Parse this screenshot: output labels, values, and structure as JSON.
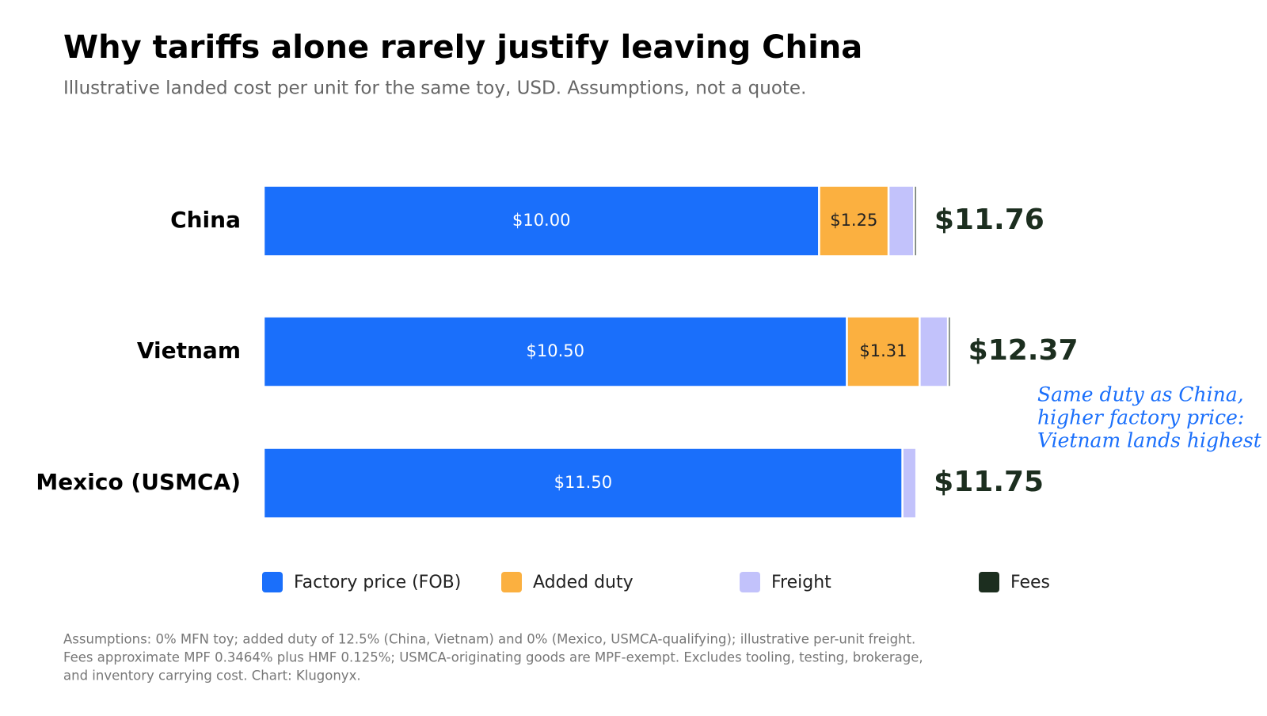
{
  "chart_data": {
    "type": "stacked-bar-horizontal",
    "title": "Why tariffs alone rarely justify leaving China",
    "subtitle": "Illustrative landed cost per unit for the same toy, USD. Assumptions, not a quote.",
    "categories": [
      "China",
      "Vietnam",
      "Mexico (USMCA)"
    ],
    "series": [
      {
        "name": "Factory price (FOB)",
        "color": "#1a6ffb",
        "values": [
          10.0,
          10.5,
          11.5
        ],
        "value_labels": [
          "$10.00",
          "$10.50",
          "$11.50"
        ]
      },
      {
        "name": "Added duty",
        "color": "#fbb040",
        "values": [
          1.25,
          1.31,
          0
        ],
        "value_labels": [
          "$1.25",
          "$1.31",
          null
        ]
      },
      {
        "name": "Freight",
        "color": "#c2c2fb",
        "values": [
          0.46,
          0.51,
          0.25
        ]
      },
      {
        "name": "Fees",
        "color": "#1c2e1f",
        "values": [
          0.05,
          0.05,
          0
        ]
      }
    ],
    "totals": [
      11.76,
      12.37,
      11.75
    ],
    "total_labels": [
      "$11.76",
      "$12.37",
      "$11.75"
    ],
    "xlim": [
      0,
      14
    ],
    "annotation": [
      "Same duty as China,",
      "higher factory price:",
      "Vietnam lands highest"
    ],
    "footnote": [
      "Assumptions: 0% MFN toy; added duty of 12.5% (China, Vietnam) and 0% (Mexico, USMCA-qualifying); illustrative per-unit freight.",
      "Fees approximate MPF 0.3464% plus HMF 0.125%; USMCA-originating goods are MPF-exempt. Excludes tooling, testing, brokerage,",
      "and inventory carrying cost. Chart: Klugonyx."
    ]
  }
}
